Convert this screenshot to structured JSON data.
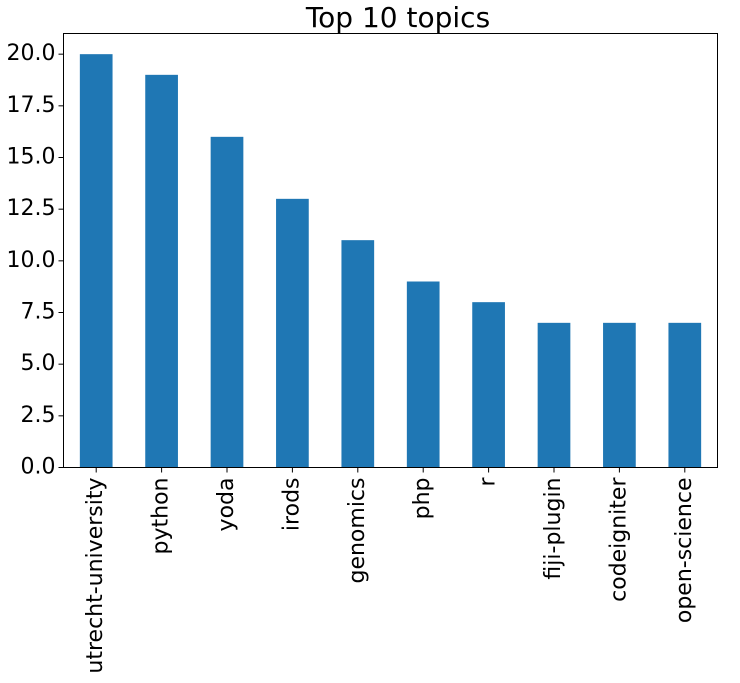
{
  "chart_data": {
    "type": "bar",
    "title": "Top 10 topics",
    "xlabel": "",
    "ylabel": "",
    "categories": [
      "utrecht-university",
      "python",
      "yoda",
      "irods",
      "genomics",
      "php",
      "r",
      "fiji-plugin",
      "codeigniter",
      "open-science"
    ],
    "values": [
      20,
      19,
      16,
      13,
      11,
      9,
      8,
      7,
      7,
      7
    ],
    "ylim": [
      0,
      21
    ],
    "yticks": [
      "0.0",
      "2.5",
      "5.0",
      "7.5",
      "10.0",
      "12.5",
      "15.0",
      "17.5",
      "20.0"
    ],
    "grid": false,
    "legend": "none",
    "bar_color": "#1f77b4"
  }
}
